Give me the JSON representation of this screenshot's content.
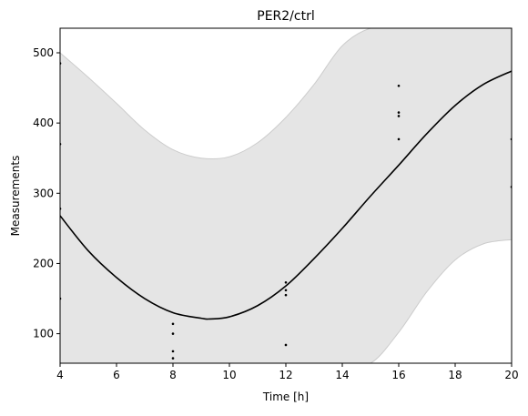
{
  "chart_data": {
    "type": "line",
    "title": "PER2/ctrl",
    "xlabel": "Time [h]",
    "ylabel": "Measurements",
    "xlim": [
      4,
      20
    ],
    "ylim": [
      58,
      535
    ],
    "x_ticks": [
      4,
      6,
      8,
      10,
      12,
      14,
      16,
      18,
      20
    ],
    "y_ticks": [
      100,
      200,
      300,
      400,
      500
    ],
    "grid": false,
    "legend": "none",
    "fit": {
      "name": "",
      "color": "#000000",
      "x": [
        4,
        5,
        6,
        7,
        8,
        9,
        9.3,
        10,
        11,
        12,
        13,
        14,
        15,
        16,
        17,
        18,
        19,
        20
      ],
      "y": [
        268,
        218,
        180,
        150,
        130,
        122,
        121,
        124,
        140,
        168,
        207,
        250,
        296,
        340,
        385,
        425,
        455,
        474
      ]
    },
    "confidence_band": {
      "color": "#e5e5e5",
      "edge_color": "#cccccc",
      "x": [
        4,
        5,
        6,
        7,
        8,
        9,
        10,
        11,
        12,
        13,
        14,
        15,
        16,
        17,
        18,
        19,
        20
      ],
      "upper": [
        500,
        465,
        428,
        390,
        362,
        350,
        352,
        372,
        408,
        455,
        510,
        535,
        535,
        535,
        535,
        535,
        535
      ],
      "lower": [
        58,
        58,
        58,
        58,
        58,
        58,
        58,
        58,
        58,
        58,
        58,
        58,
        102,
        160,
        205,
        228,
        234
      ]
    },
    "scatter": {
      "color": "#000000",
      "points": [
        [
          4,
          485
        ],
        [
          4,
          370
        ],
        [
          4,
          278
        ],
        [
          4,
          150
        ],
        [
          8,
          114
        ],
        [
          8,
          100
        ],
        [
          8,
          75
        ],
        [
          8,
          65
        ],
        [
          12,
          173
        ],
        [
          12,
          162
        ],
        [
          12,
          155
        ],
        [
          12,
          84
        ],
        [
          16,
          453
        ],
        [
          16,
          415
        ],
        [
          16,
          410
        ],
        [
          16,
          377
        ],
        [
          20,
          377
        ],
        [
          20,
          309
        ]
      ]
    }
  }
}
